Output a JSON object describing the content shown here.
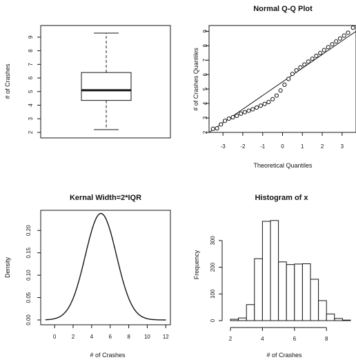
{
  "chart_data": [
    {
      "type": "boxplot",
      "title": "",
      "xlabel": "",
      "ylabel": "# of Crashes",
      "ylim": [
        2,
        9.5
      ],
      "yticks": [
        "2",
        "3",
        "4",
        "5",
        "6",
        "7",
        "8",
        "9"
      ],
      "box": {
        "min": 2.2,
        "q1": 4.35,
        "median": 5.1,
        "q3": 6.4,
        "max": 9.3
      }
    },
    {
      "type": "scatter",
      "title": "Normal Q-Q Plot",
      "xlabel": "Theoretical Quantiles",
      "ylabel": "# of Crashes Quantiles",
      "xlim": [
        -3.7,
        3.7
      ],
      "ylim": [
        2,
        9.4
      ],
      "xticks": [
        "-3",
        "-2",
        "-1",
        "0",
        "1",
        "2",
        "3"
      ],
      "yticks": [
        "2",
        "3",
        "4",
        "5",
        "6",
        "7",
        "8",
        "9"
      ],
      "points": [
        [
          -3.5,
          2.25
        ],
        [
          -3.3,
          2.28
        ],
        [
          -3.1,
          2.55
        ],
        [
          -2.9,
          2.8
        ],
        [
          -2.7,
          2.95
        ],
        [
          -2.5,
          3.05
        ],
        [
          -2.3,
          3.15
        ],
        [
          -2.1,
          3.3
        ],
        [
          -1.9,
          3.4
        ],
        [
          -1.7,
          3.5
        ],
        [
          -1.5,
          3.6
        ],
        [
          -1.3,
          3.72
        ],
        [
          -1.1,
          3.85
        ],
        [
          -0.9,
          3.97
        ],
        [
          -0.7,
          4.1
        ],
        [
          -0.5,
          4.3
        ],
        [
          -0.3,
          4.55
        ],
        [
          -0.1,
          4.9
        ],
        [
          0.1,
          5.3
        ],
        [
          0.3,
          5.7
        ],
        [
          0.5,
          6.05
        ],
        [
          0.7,
          6.3
        ],
        [
          0.9,
          6.5
        ],
        [
          1.1,
          6.7
        ],
        [
          1.3,
          6.9
        ],
        [
          1.5,
          7.1
        ],
        [
          1.7,
          7.3
        ],
        [
          1.9,
          7.5
        ],
        [
          2.1,
          7.7
        ],
        [
          2.3,
          7.9
        ],
        [
          2.5,
          8.1
        ],
        [
          2.7,
          8.3
        ],
        [
          2.9,
          8.5
        ],
        [
          3.1,
          8.7
        ],
        [
          3.3,
          8.9
        ],
        [
          3.55,
          9.25
        ]
      ],
      "reference_line": [
        [
          -3.7,
          2.0
        ],
        [
          3.7,
          9.0
        ]
      ]
    },
    {
      "type": "line",
      "title": "Kernal Width=2*IQR",
      "xlabel": "# of Crashes",
      "ylabel": "Density",
      "xlim": [
        -1.5,
        12.5
      ],
      "ylim": [
        0,
        0.245
      ],
      "xticks": [
        "0",
        "2",
        "4",
        "6",
        "8",
        "10",
        "12"
      ],
      "yticks": [
        "0.00",
        "0.05",
        "0.10",
        "0.15",
        "0.20"
      ],
      "density_peak": {
        "x": 5.0,
        "y": 0.238
      },
      "density_sd": 1.68
    },
    {
      "type": "bar",
      "title": "Histogram of x",
      "xlabel": "# of Crashes",
      "ylabel": "Frequency",
      "xlim": [
        2,
        9.5
      ],
      "ylim": [
        0,
        390
      ],
      "xticks": [
        "2",
        "4",
        "6",
        "8"
      ],
      "yticks": [
        "0",
        "100",
        "200",
        "300"
      ],
      "bin_width": 0.5,
      "bins": [
        [
          2.0,
          5
        ],
        [
          2.5,
          10
        ],
        [
          3.0,
          60
        ],
        [
          3.5,
          232
        ],
        [
          4.0,
          372
        ],
        [
          4.5,
          375
        ],
        [
          5.0,
          220
        ],
        [
          5.5,
          210
        ],
        [
          6.0,
          212
        ],
        [
          6.5,
          213
        ],
        [
          7.0,
          155
        ],
        [
          7.5,
          75
        ],
        [
          8.0,
          25
        ],
        [
          8.5,
          8
        ],
        [
          9.0,
          2
        ]
      ]
    }
  ]
}
